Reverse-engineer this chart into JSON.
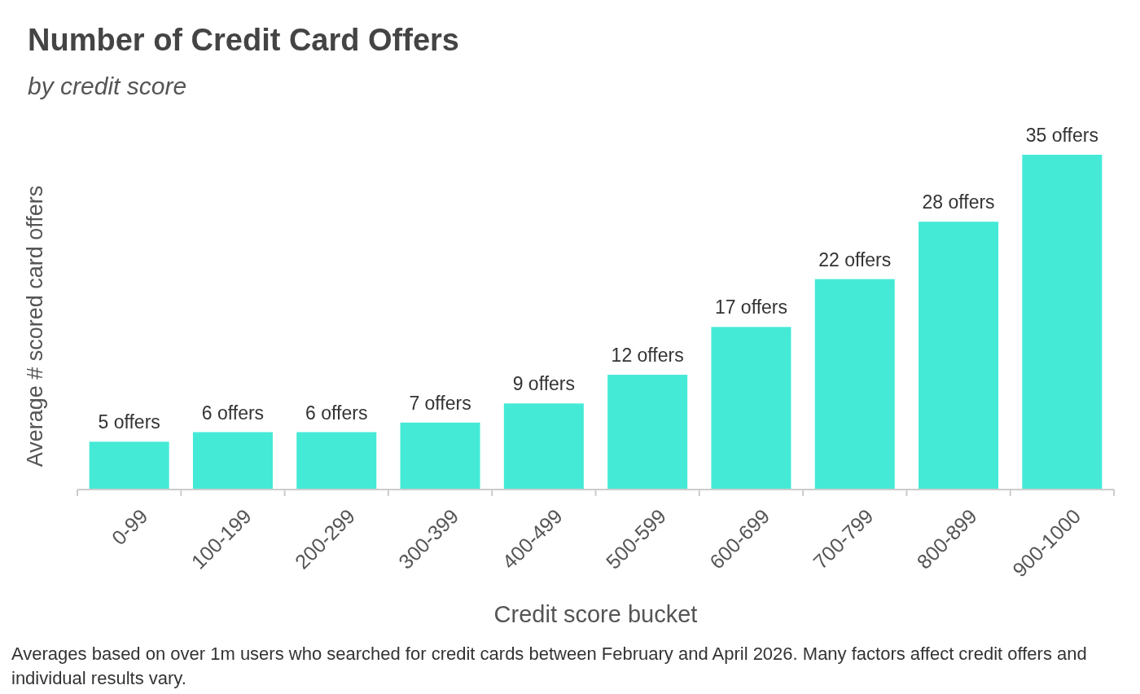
{
  "chart_data": {
    "type": "bar",
    "title": "Number of Credit Card Offers",
    "subtitle": "by credit score",
    "xlabel": "Credit score bucket",
    "ylabel": "Average # scored card offers",
    "categories": [
      "0-99",
      "100-199",
      "200-299",
      "300-399",
      "400-499",
      "500-599",
      "600-699",
      "700-799",
      "800-899",
      "900-1000"
    ],
    "values": [
      5,
      6,
      6,
      7,
      9,
      12,
      17,
      22,
      28,
      35
    ],
    "value_labels": [
      "5 offers",
      "6 offers",
      "6 offers",
      "7 offers",
      "9 offers",
      "12 offers",
      "17 offers",
      "22 offers",
      "28 offers",
      "35 offers"
    ],
    "color": "#44ead6",
    "annotations": [
      "Averages based on over 1m users who searched for credit cards between February and April 2026. Many factors affect credit offers and individual results vary."
    ]
  }
}
